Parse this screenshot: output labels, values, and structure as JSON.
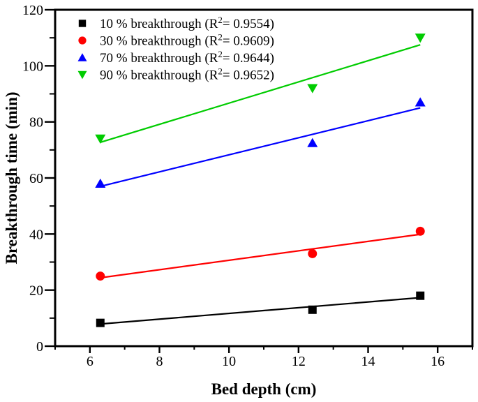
{
  "chart_data": {
    "type": "scatter",
    "title": "",
    "xlabel": "Bed depth (cm)",
    "ylabel": "Breakthrough time (min)",
    "xlim": [
      5,
      17
    ],
    "ylim": [
      0,
      120
    ],
    "x_major_ticks": [
      6,
      8,
      10,
      12,
      14,
      16
    ],
    "x_minor_ticks": [
      5,
      7,
      9,
      11,
      13,
      15,
      17
    ],
    "y_major_ticks": [
      0,
      20,
      40,
      60,
      80,
      100,
      120
    ],
    "y_minor_ticks": [
      10,
      30,
      50,
      70,
      90,
      110
    ],
    "grid": false,
    "legend_position": "top-left",
    "x_values": [
      6.3,
      12.4,
      15.5
    ],
    "series": [
      {
        "name": "10 % breakthrough",
        "r_squared": "0.9554",
        "marker": "square",
        "color": "#000000",
        "values": [
          8.3,
          13,
          18
        ],
        "fit": {
          "x1": 6.3,
          "y1": 7.9,
          "x2": 15.5,
          "y2": 17.3
        }
      },
      {
        "name": "30 % breakthrough",
        "r_squared": "0.9609",
        "marker": "circle",
        "color": "#ff0000",
        "values": [
          25,
          33,
          41
        ],
        "fit": {
          "x1": 6.3,
          "y1": 24.4,
          "x2": 15.5,
          "y2": 39.9
        }
      },
      {
        "name": "70 % breakthrough",
        "r_squared": "0.9644",
        "marker": "triangle-up",
        "color": "#0000ff",
        "values": [
          58,
          72.5,
          87
        ],
        "fit": {
          "x1": 6.3,
          "y1": 57.0,
          "x2": 15.5,
          "y2": 85.0
        }
      },
      {
        "name": "90 % breakthrough",
        "r_squared": "0.9652",
        "marker": "triangle-down",
        "color": "#00cc00",
        "values": [
          74,
          92,
          110
        ],
        "fit": {
          "x1": 6.3,
          "y1": 72.7,
          "x2": 15.5,
          "y2": 107.5
        }
      }
    ],
    "legend": {
      "items": [
        {
          "pre": "10 % breakthrough (R",
          "sup": "2",
          "post": "= 0.9554)"
        },
        {
          "pre": "30 % breakthrough (R",
          "sup": "2",
          "post": "= 0.9609)"
        },
        {
          "pre": "70 % breakthrough (R",
          "sup": "2",
          "post": "= 0.9644)"
        },
        {
          "pre": "90 % breakthrough (R",
          "sup": "2",
          "post": "= 0.9652)"
        }
      ]
    }
  }
}
